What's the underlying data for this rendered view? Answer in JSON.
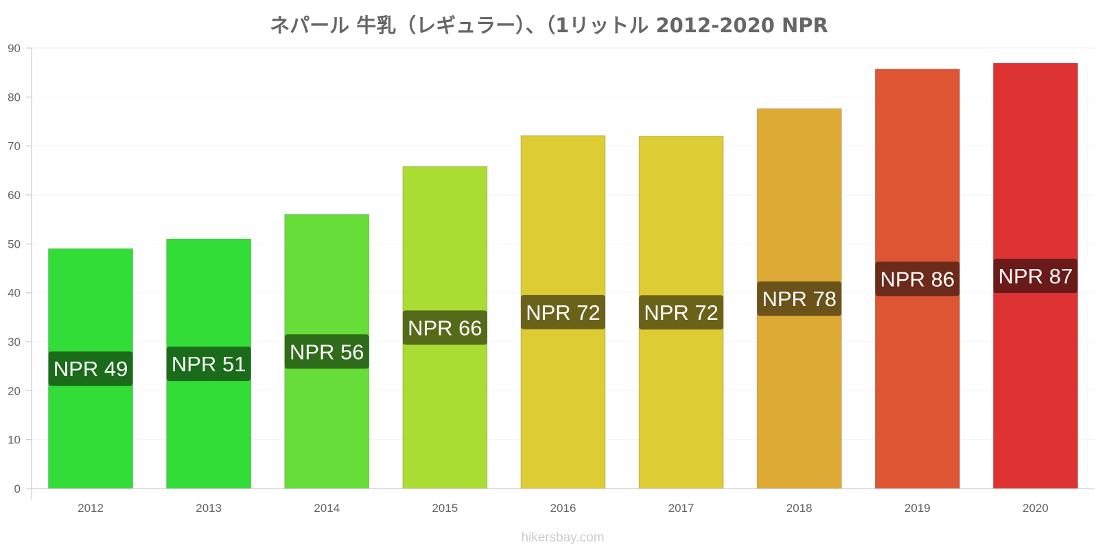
{
  "chart_data": {
    "type": "bar",
    "title": "ネパール 牛乳（レギュラー）、（1リットル 2012-2020 NPR",
    "xlabel": "",
    "ylabel": "",
    "ylim": [
      0,
      90
    ],
    "yticks": [
      0,
      10,
      20,
      30,
      40,
      50,
      60,
      70,
      80,
      90
    ],
    "grid": true,
    "categories": [
      "2012",
      "2013",
      "2014",
      "2015",
      "2016",
      "2017",
      "2018",
      "2019",
      "2020"
    ],
    "values": [
      49,
      51,
      56,
      65.8,
      72.1,
      72,
      77.6,
      85.7,
      86.9
    ],
    "data_labels": [
      "NPR 49",
      "NPR 51",
      "NPR 56",
      "NPR 66",
      "NPR 72",
      "NPR 72",
      "NPR 78",
      "NPR 86",
      "NPR 87"
    ],
    "bar_colors": [
      "#33dd38",
      "#33dd38",
      "#66dd38",
      "#aadd33",
      "#ddcc33",
      "#ddcc33",
      "#ddaa33",
      "#dd5533",
      "#dd3333"
    ],
    "label_bg_colors": [
      "#1a6b1a",
      "#1a6b1a",
      "#2e6b1a",
      "#556b1a",
      "#6b621a",
      "#6b621a",
      "#6b511a",
      "#6b2a1a",
      "#6b1a1a"
    ]
  },
  "credit": "hikersbay.com"
}
